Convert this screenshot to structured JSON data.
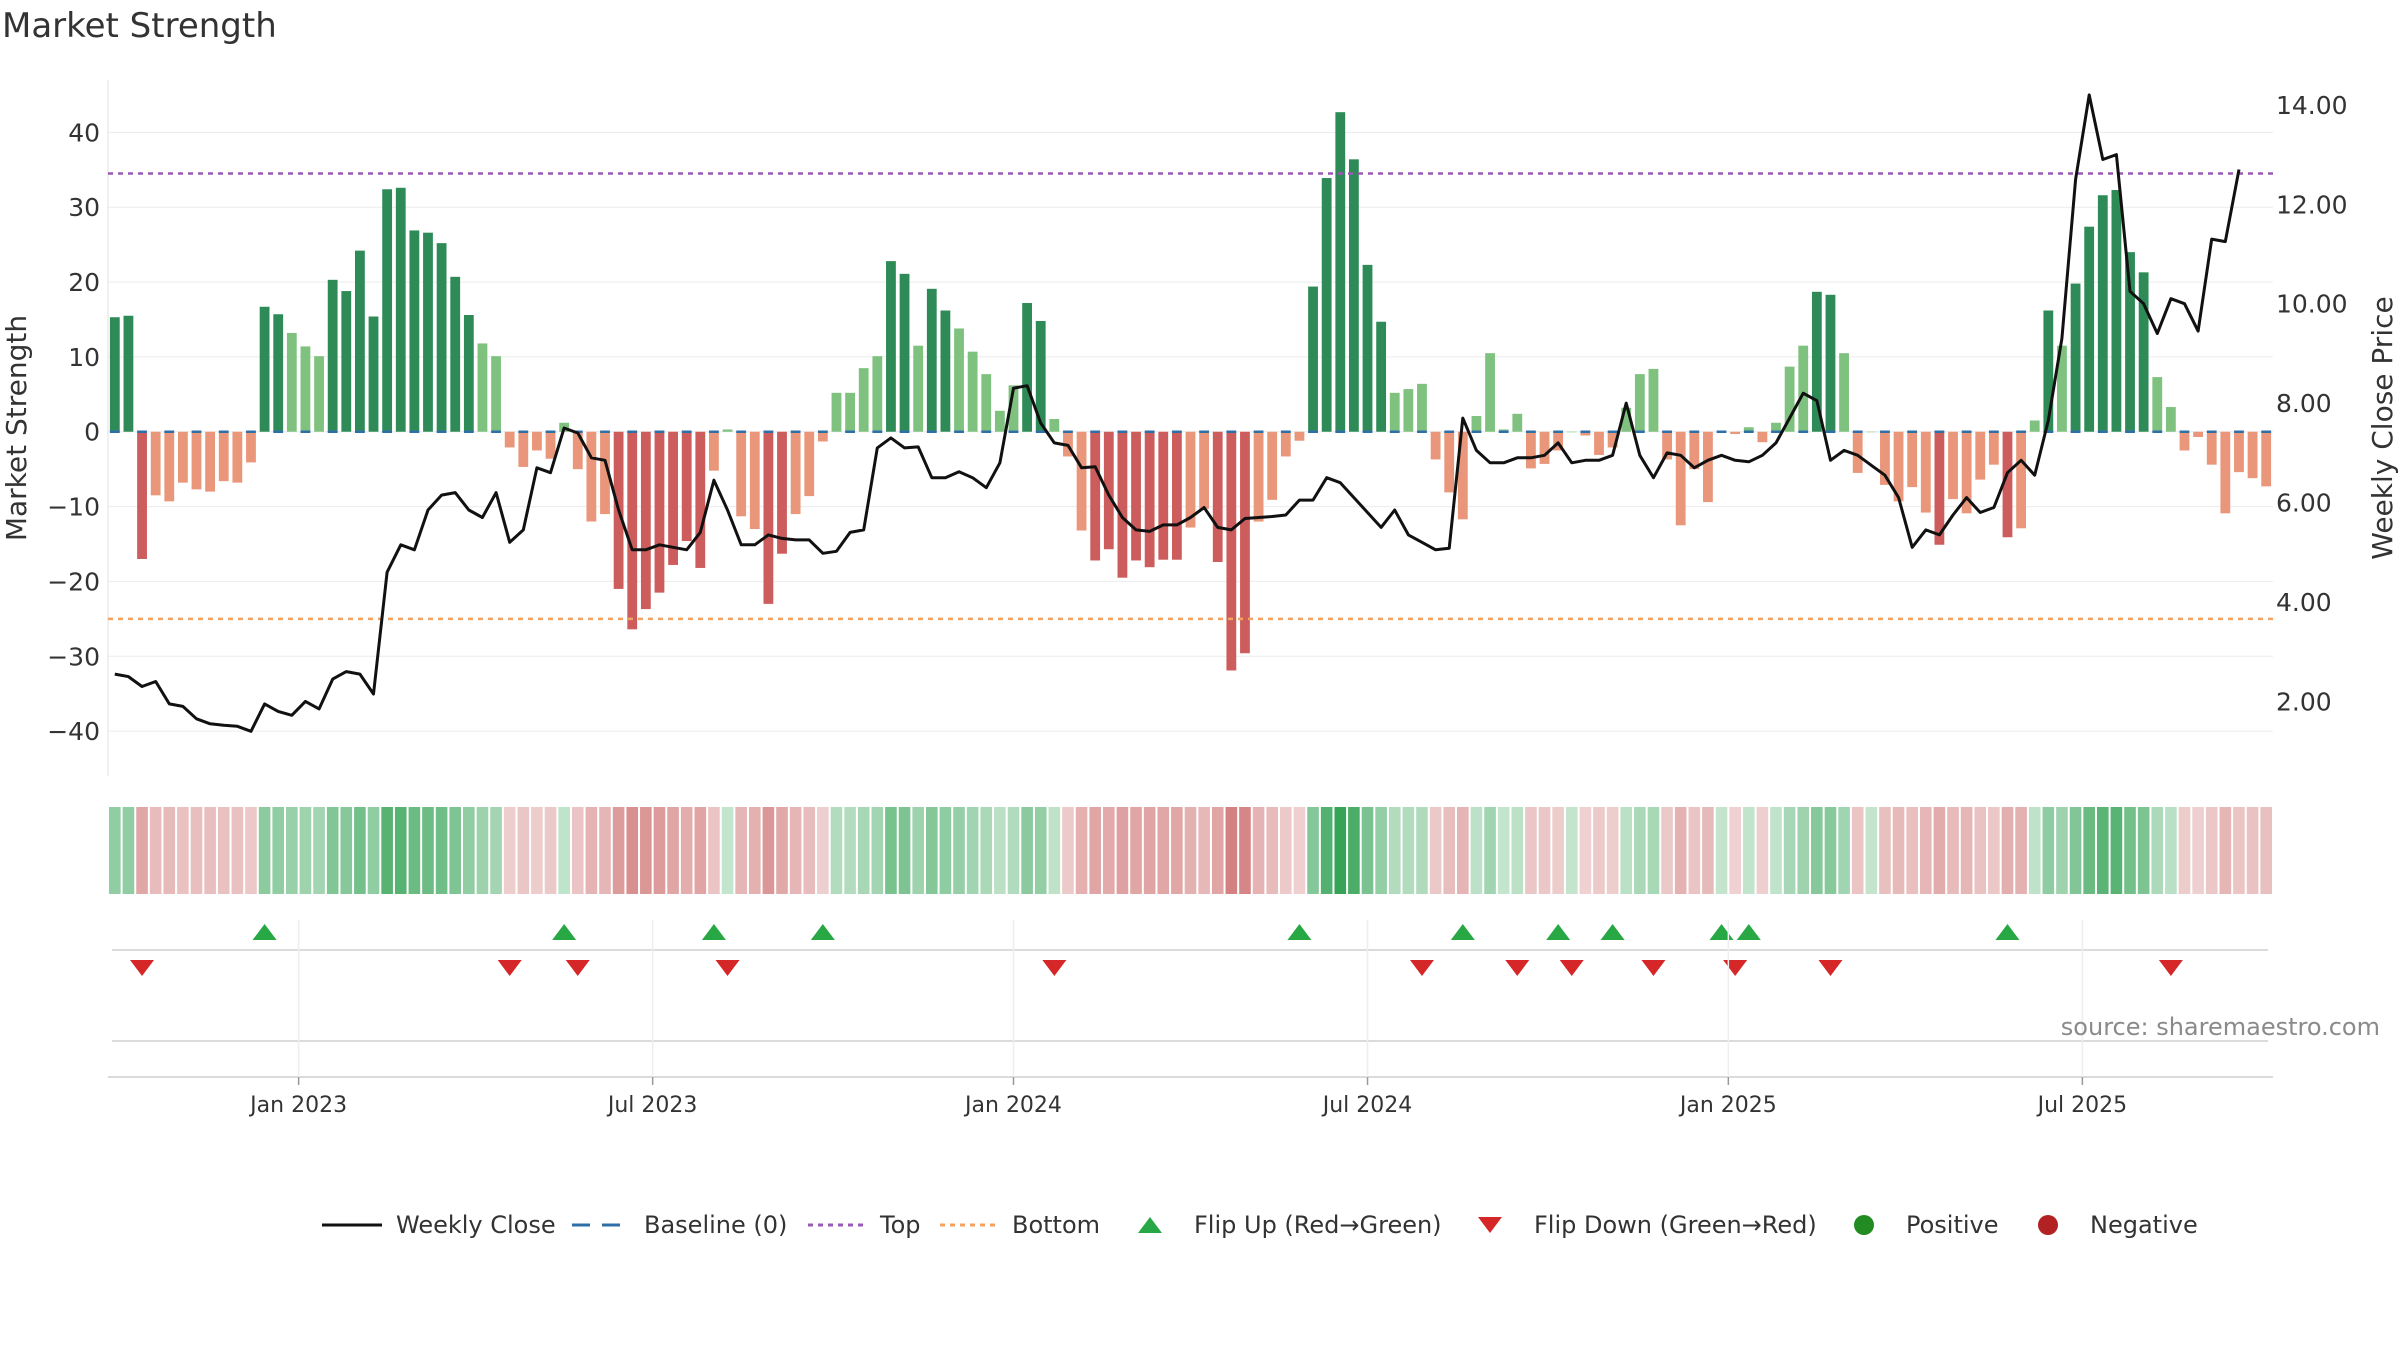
{
  "title": "Market Strength",
  "source": "source: sharemaestro.com",
  "colors": {
    "pos_strong": "#2e8b57",
    "pos_light": "#7fc27f",
    "neg_strong": "#cd5c5c",
    "neg_light": "#e9967a",
    "line": "#111111",
    "baseline": "#2f6fa8",
    "top": "#9b59b6",
    "bottom": "#f4a261",
    "flip_up": "#28a745",
    "flip_down": "#d62728",
    "positive": "#228b22",
    "negative": "#b22222"
  },
  "legend": [
    {
      "key": "line",
      "label": "Weekly Close"
    },
    {
      "key": "baseline",
      "label": "Baseline (0)"
    },
    {
      "key": "top",
      "label": "Top"
    },
    {
      "key": "bottom",
      "label": "Bottom"
    },
    {
      "key": "flip_up",
      "label": "Flip Up (Red→Green)"
    },
    {
      "key": "flip_down",
      "label": "Flip Down (Green→Red)"
    },
    {
      "key": "positive",
      "label": "Positive"
    },
    {
      "key": "negative",
      "label": "Negative"
    }
  ],
  "chart_data": {
    "type": "bar+line",
    "title": "Market Strength",
    "ylabel_left": "Market Strength",
    "ylabel_right": "Weekly Close Price",
    "ylim_left": [
      -46,
      47
    ],
    "ylim_right": [
      0.5,
      14.5
    ],
    "yticks_left": [
      "40",
      "30",
      "20",
      "10",
      "0",
      "−10",
      "−20",
      "−30",
      "−40"
    ],
    "yticks_left_values": [
      40,
      30,
      20,
      10,
      0,
      -10,
      -20,
      -30,
      -40
    ],
    "yticks_right": [
      "14.00",
      "12.00",
      "10.00",
      "8.00",
      "6.00",
      "4.00",
      "2.00"
    ],
    "yticks_right_values": [
      14,
      12,
      10,
      8,
      6,
      4,
      2
    ],
    "x_ticks": [
      {
        "label": "Jan 2023",
        "week": 14
      },
      {
        "label": "Jul 2023",
        "week": 40
      },
      {
        "label": "Jan 2024",
        "week": 66.5
      },
      {
        "label": "Jul 2024",
        "week": 92.5
      },
      {
        "label": "Jan 2025",
        "week": 119
      },
      {
        "label": "Jul 2025",
        "week": 145
      }
    ],
    "top_level": 34.5,
    "bottom_level": -25,
    "baseline": 0,
    "strength": [
      15.3,
      15.5,
      -17,
      -8.5,
      -9.3,
      -6.8,
      -7.7,
      -8,
      -6.6,
      -6.8,
      -4.1,
      16.7,
      15.7,
      13.2,
      11.4,
      10.1,
      20.3,
      18.8,
      24.2,
      15.4,
      32.4,
      32.6,
      26.9,
      26.6,
      25.2,
      20.7,
      15.6,
      11.8,
      10.1,
      -2.1,
      -4.7,
      -2.5,
      -3.6,
      1.2,
      -5,
      -12,
      -11,
      -21,
      -26.4,
      -23.7,
      -21.5,
      -17.8,
      -14.6,
      -18.2,
      -5.2,
      0.3,
      -11.3,
      -13,
      -23,
      -16.3,
      -11,
      -8.6,
      -1.3,
      5.2,
      5.2,
      8.5,
      10.1,
      22.8,
      21.1,
      11.5,
      19.1,
      16.2,
      13.8,
      10.7,
      7.7,
      2.8,
      6.2,
      17.2,
      14.8,
      1.7,
      -3.3,
      -13.2,
      -17.2,
      -15.7,
      -19.5,
      -17.2,
      -18.1,
      -17.1,
      -17.1,
      -12.8,
      -10.3,
      -17.4,
      -31.9,
      -29.6,
      -12,
      -9.1,
      -3.3,
      -1.2,
      19.4,
      33.9,
      42.7,
      36.4,
      22.3,
      14.7,
      5.2,
      5.7,
      6.4,
      -3.7,
      -8.1,
      -11.7,
      2.1,
      10.5,
      0.3,
      2.4,
      -4.9,
      -4.3,
      -2.5,
      0,
      -0.5,
      -3.1,
      -2.1,
      3.2,
      7.7,
      8.4,
      -3.7,
      -12.5,
      -5,
      -9.4,
      0,
      -0.3,
      0.6,
      -1.4,
      1.2,
      8.7,
      11.5,
      18.7,
      18.3,
      10.5,
      -5.5,
      0,
      -7.1,
      -9.3,
      -7.4,
      -10.8,
      -15.1,
      -9,
      -10.9,
      -6.4,
      -4.4,
      -14.1,
      -12.9,
      1.5,
      16.2,
      11.5,
      19.8,
      27.4,
      31.6,
      32.3,
      24,
      21.3,
      7.3,
      3.3,
      -2.5,
      -0.7,
      -4.4,
      -10.9,
      -5.4,
      -6.2,
      -7.3
    ],
    "weekly_close": [
      2.55,
      2.5,
      2.3,
      2.4,
      1.95,
      1.9,
      1.65,
      1.55,
      1.52,
      1.5,
      1.4,
      1.95,
      1.8,
      1.72,
      2.0,
      1.85,
      2.45,
      2.6,
      2.55,
      2.15,
      4.6,
      5.15,
      5.05,
      5.85,
      6.15,
      6.2,
      5.85,
      5.7,
      6.2,
      5.2,
      5.45,
      6.7,
      6.6,
      7.5,
      7.4,
      6.9,
      6.85,
      5.85,
      5.05,
      5.05,
      5.15,
      5.1,
      5.05,
      5.4,
      6.45,
      5.85,
      5.15,
      5.15,
      5.35,
      5.28,
      5.25,
      5.25,
      4.98,
      5.02,
      5.4,
      5.45,
      7.1,
      7.3,
      7.1,
      7.12,
      6.5,
      6.5,
      6.62,
      6.5,
      6.3,
      6.8,
      8.3,
      8.35,
      7.6,
      7.2,
      7.15,
      6.7,
      6.72,
      6.15,
      5.7,
      5.45,
      5.42,
      5.55,
      5.55,
      5.7,
      5.9,
      5.5,
      5.45,
      5.68,
      5.7,
      5.72,
      5.75,
      6.05,
      6.05,
      6.5,
      6.4,
      6.1,
      5.8,
      5.5,
      5.85,
      5.35,
      5.2,
      5.05,
      5.08,
      7.7,
      7.05,
      6.8,
      6.8,
      6.9,
      6.9,
      6.95,
      7.2,
      6.8,
      6.85,
      6.85,
      6.95,
      8.0,
      6.95,
      6.5,
      7.0,
      6.95,
      6.7,
      6.85,
      6.95,
      6.85,
      6.82,
      6.95,
      7.2,
      7.7,
      8.2,
      8.05,
      6.85,
      7.05,
      6.95,
      6.75,
      6.55,
      6.1,
      5.1,
      5.45,
      5.35,
      5.75,
      6.1,
      5.8,
      5.9,
      6.6,
      6.85,
      6.55,
      7.65,
      9.3,
      12.5,
      14.2,
      12.9,
      13.0,
      10.25,
      10.0,
      9.4,
      10.1,
      10.0,
      9.45,
      11.3,
      11.25,
      12.7
    ],
    "flip_up_weeks": [
      11,
      33,
      44,
      52,
      87,
      99,
      106,
      110,
      118,
      120,
      139
    ],
    "flip_down_weeks": [
      2,
      29,
      34,
      45,
      69,
      96,
      103,
      107,
      113,
      119,
      126,
      151
    ]
  }
}
